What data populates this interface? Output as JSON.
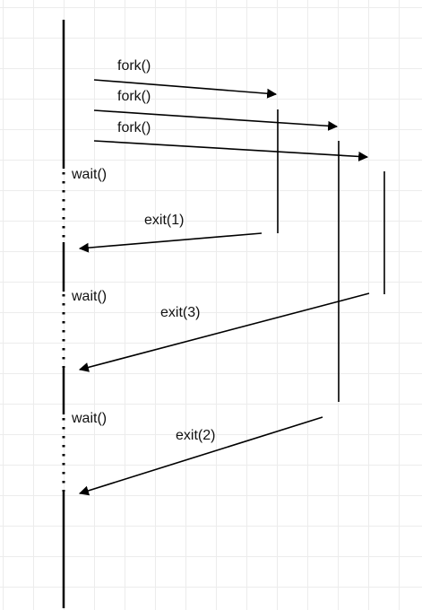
{
  "diagram": {
    "fork_labels": [
      "fork()",
      "fork()",
      "fork()"
    ],
    "wait_labels": [
      "wait()",
      "wait()",
      "wait()"
    ],
    "exit_labels": [
      "exit(1)",
      "exit(3)",
      "exit(2)"
    ],
    "colors": {
      "line": "#000000",
      "text": "#111111",
      "grid": "#ececec",
      "background": "#ffffff"
    }
  }
}
